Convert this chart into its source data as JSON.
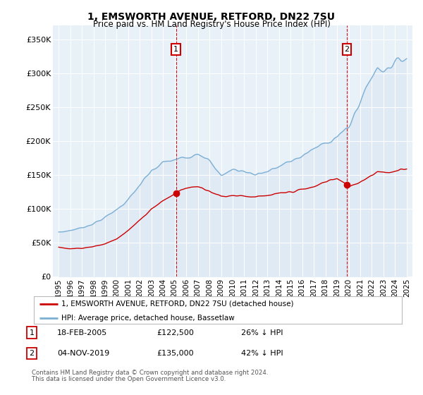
{
  "title": "1, EMSWORTH AVENUE, RETFORD, DN22 7SU",
  "subtitle": "Price paid vs. HM Land Registry's House Price Index (HPI)",
  "legend_line1": "1, EMSWORTH AVENUE, RETFORD, DN22 7SU (detached house)",
  "legend_line2": "HPI: Average price, detached house, Bassetlaw",
  "footer1": "Contains HM Land Registry data © Crown copyright and database right 2024.",
  "footer2": "This data is licensed under the Open Government Licence v3.0.",
  "annotation1_date": "18-FEB-2005",
  "annotation1_price": "£122,500",
  "annotation1_hpi": "26% ↓ HPI",
  "annotation2_date": "04-NOV-2019",
  "annotation2_price": "£135,000",
  "annotation2_hpi": "42% ↓ HPI",
  "sale1_x": 2005.12,
  "sale1_y": 122500,
  "sale2_x": 2019.84,
  "sale2_y": 135000,
  "hpi_color": "#7bafd4",
  "hpi_fill_color": "#dce8f5",
  "price_color": "#cc0000",
  "bg_color": "#e8f0f8",
  "vline_color": "#cc0000",
  "ylim_min": 0,
  "ylim_max": 370000,
  "xlim_min": 1994.5,
  "xlim_max": 2025.5,
  "yticks": [
    0,
    50000,
    100000,
    150000,
    200000,
    250000,
    300000,
    350000
  ],
  "ytick_labels": [
    "£0",
    "£50K",
    "£100K",
    "£150K",
    "£200K",
    "£250K",
    "£300K",
    "£350K"
  ],
  "xticks": [
    1995,
    1996,
    1997,
    1998,
    1999,
    2000,
    2001,
    2002,
    2003,
    2004,
    2005,
    2006,
    2007,
    2008,
    2009,
    2010,
    2011,
    2012,
    2013,
    2014,
    2015,
    2016,
    2017,
    2018,
    2019,
    2020,
    2021,
    2022,
    2023,
    2024,
    2025
  ]
}
